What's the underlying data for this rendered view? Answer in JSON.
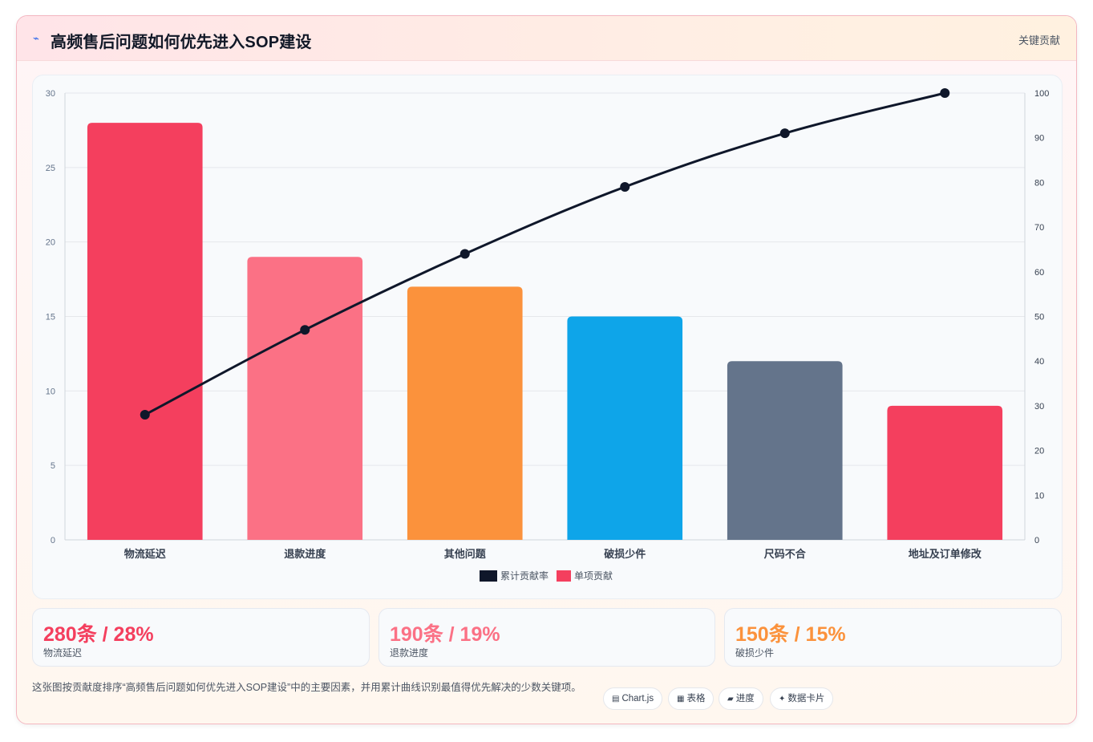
{
  "header": {
    "icon": "lightning-icon",
    "title": "高频售后问题如何优先进入SOP建设",
    "tag": "关键贡献"
  },
  "chart_data": {
    "type": "bar",
    "categories": [
      "物流延迟",
      "退款进度",
      "其他问题",
      "破损少件",
      "尺码不合",
      "地址及订单修改"
    ],
    "series": [
      {
        "name": "单项贡献",
        "type": "bar",
        "axis": "left",
        "values": [
          28,
          19,
          17,
          15,
          12,
          9
        ],
        "colors": [
          "#f43f5e",
          "#fb7185",
          "#fb923c",
          "#0ea5e9",
          "#64748b",
          "#f43f5e"
        ]
      },
      {
        "name": "累计贡献率",
        "type": "line",
        "axis": "right",
        "values": [
          28,
          47,
          64,
          79,
          91,
          100
        ],
        "color": "#0f172a"
      }
    ],
    "ylim": [
      0,
      30
    ],
    "y2lim": [
      0,
      100
    ],
    "yticks": [
      0,
      5,
      10,
      15,
      20,
      25,
      30
    ],
    "y2ticks": [
      0,
      10,
      20,
      30,
      40,
      50,
      60,
      70,
      80,
      90,
      100
    ],
    "grid": true,
    "legend": "bottom",
    "legend_entries": [
      {
        "label": "累计贡献率",
        "color": "#0f172a"
      },
      {
        "label": "单项贡献",
        "color": "#f43f5e"
      }
    ]
  },
  "stats": [
    {
      "value": "280条 / 28%",
      "label": "物流延迟",
      "color": "#f43f5e"
    },
    {
      "value": "190条 / 19%",
      "label": "退款进度",
      "color": "#fb7185"
    },
    {
      "value": "150条 / 15%",
      "label": "破损少件",
      "color": "#fb923c"
    }
  ],
  "footer": {
    "description": "这张图按贡献度排序“高频售后问题如何优先进入SOP建设”中的主要因素，并用累计曲线识别最值得优先解决的少数关键项。",
    "pills": [
      {
        "icon": "chart-icon",
        "glyph": "▤",
        "label": "Chart.js"
      },
      {
        "icon": "table-icon",
        "glyph": "▦",
        "label": "表格"
      },
      {
        "icon": "progress-icon",
        "glyph": "▰",
        "label": "进度"
      },
      {
        "icon": "card-icon",
        "glyph": "✦",
        "label": "数据卡片"
      }
    ]
  }
}
